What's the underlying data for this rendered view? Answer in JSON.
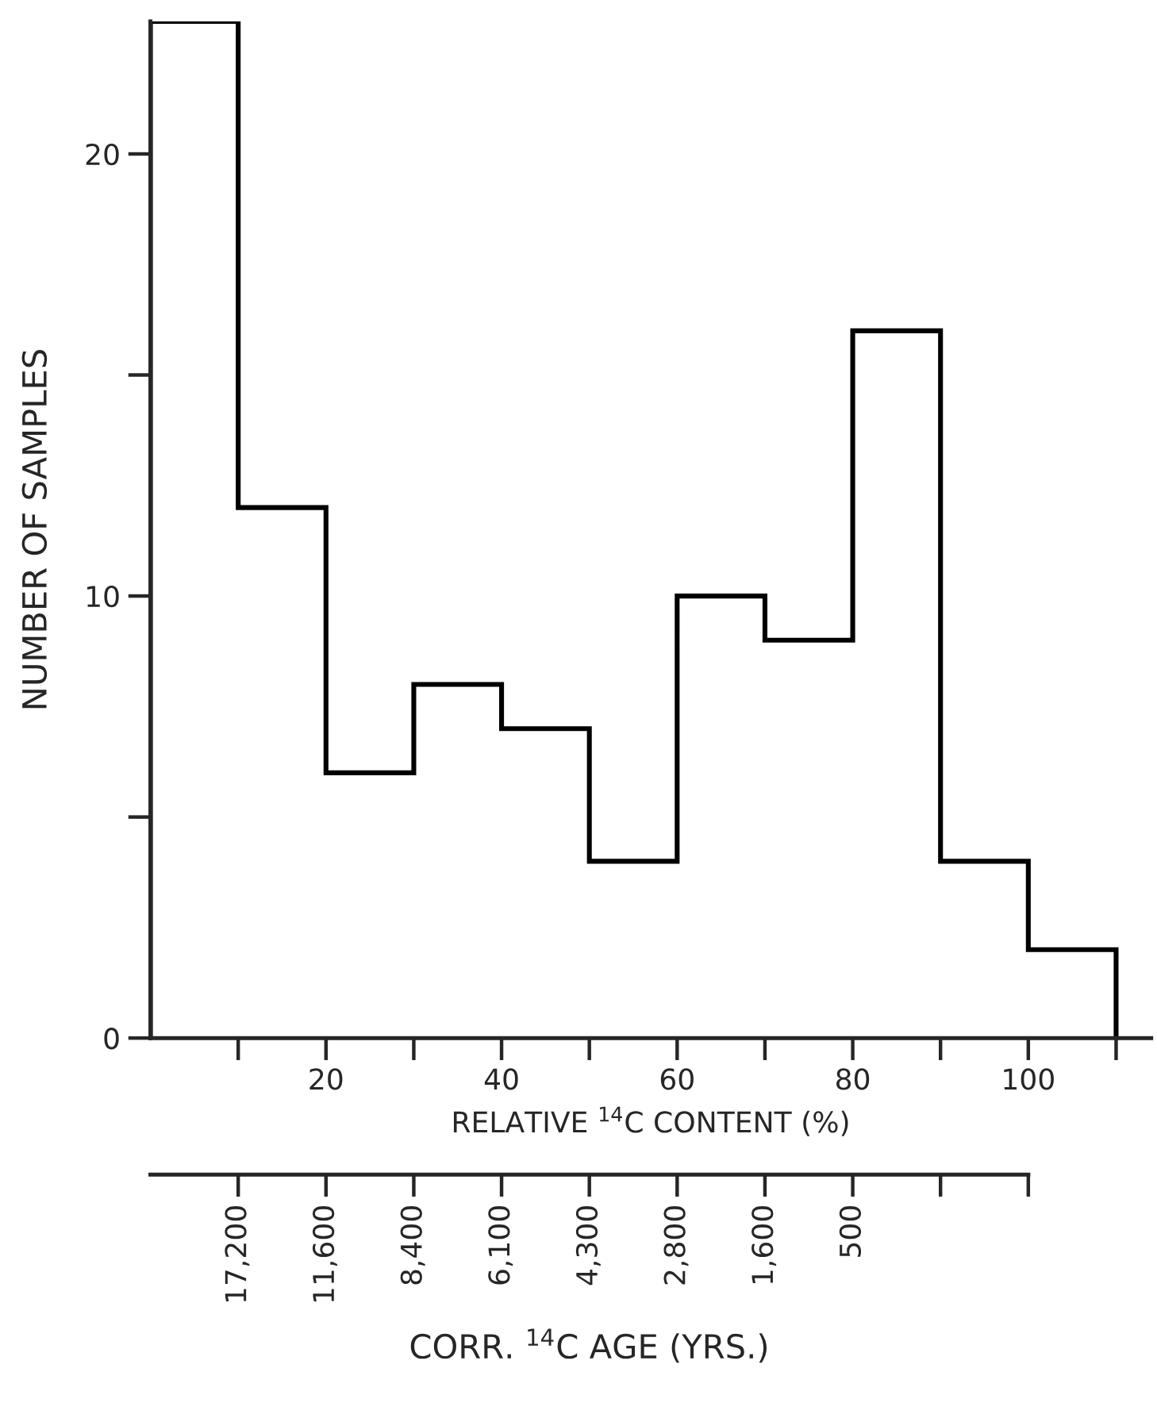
{
  "chart_data": [
    {
      "type": "histogram",
      "xlabel": "RELATIVE $^{14}$C CONTENT (%)",
      "ylabel": "NUMBER OF SAMPLES",
      "bins": [
        0,
        10,
        20,
        30,
        40,
        50,
        60,
        70,
        80,
        90,
        100,
        110
      ],
      "values": [
        23,
        12,
        6,
        8,
        7,
        4,
        10,
        9,
        16,
        4,
        2
      ],
      "color": "#000000",
      "xlim": [
        0,
        114
      ],
      "ylim": [
        0,
        23
      ],
      "xticks": [
        {
          "value": 10,
          "label": null
        },
        20,
        {
          "value": 30,
          "label": null
        },
        40,
        {
          "value": 50,
          "label": null
        },
        60,
        {
          "value": 70,
          "label": null
        },
        80,
        {
          "value": 90,
          "label": null
        },
        100,
        {
          "value": 110,
          "label": null
        }
      ],
      "yticks": [
        0,
        {
          "value": 5,
          "label": null
        },
        10,
        {
          "value": 15,
          "label": null
        },
        20
      ],
      "grid": false
    },
    {
      "type": "other",
      "xlabel": "CORR. $^{14}$C AGE (YRS.)",
      "categories": [
        "17,200",
        "11,600",
        "8,400",
        "6,100",
        "4,300",
        "2,800",
        "1,600",
        "500",
        null,
        null
      ]
    }
  ]
}
